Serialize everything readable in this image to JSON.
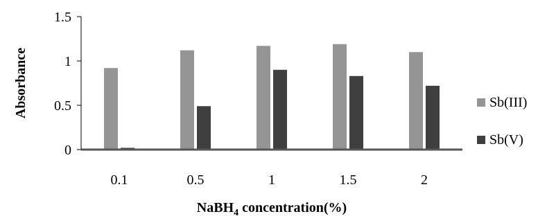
{
  "chart_data": {
    "type": "bar",
    "title": "",
    "xlabel_main": "NaBH",
    "xlabel_sub": "4",
    "xlabel_tail": " concentration(%)",
    "ylabel": "Absorbance",
    "categories": [
      "0.1",
      "0.5",
      "1",
      "1.5",
      "2"
    ],
    "ylim": [
      0,
      1.5
    ],
    "yticks": [
      "0",
      "0.5",
      "1",
      "1.5"
    ],
    "grid": false,
    "legend_position": "right",
    "series": [
      {
        "name": "Sb(III)",
        "color": "#959595",
        "values": [
          0.92,
          1.12,
          1.17,
          1.19,
          1.1
        ]
      },
      {
        "name": "Sb(V)",
        "color": "#3f3f3f",
        "values": [
          0.02,
          0.49,
          0.9,
          0.83,
          0.72
        ]
      }
    ]
  }
}
